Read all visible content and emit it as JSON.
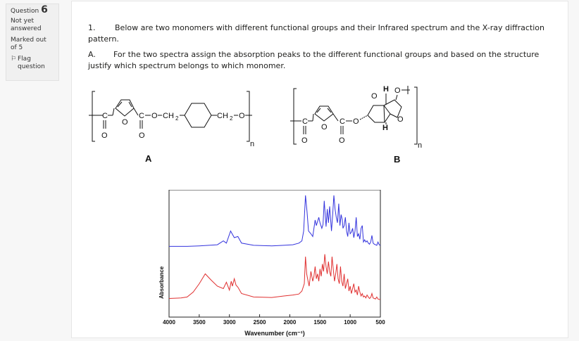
{
  "question": {
    "label": "Question",
    "number": "6",
    "state": "Not yet answered",
    "mark": "Marked out of 5",
    "flag": "Flag question"
  },
  "text": {
    "p1_num": "1.",
    "p1": "Below are two monomers  with different functional groups and their Infrared spectrum and the X-ray diffraction pattern.",
    "p2_num": "A.",
    "p2": "For the two spectra assign the absorption peaks to the different functional groups and based on the structure justify which spectrum belongs to which monomer."
  },
  "structures": {
    "A": {
      "label": "A",
      "left_fragment": "C",
      "carbonyl_c": "C",
      "o": "O",
      "ch2_left": "CH",
      "sub2": "2",
      "ch2_right": "CH",
      "o_end": "O",
      "n": "n"
    },
    "B": {
      "label": "B",
      "c": "C",
      "o": "O",
      "h": "H",
      "n": "n"
    }
  },
  "chart_data": {
    "type": "line",
    "xlabel": "Wavenumber (cm⁻¹)",
    "ylabel": "Absorbance",
    "xlim": [
      4000,
      500
    ],
    "x_reversed": true,
    "xticks": [
      4000,
      3500,
      3000,
      2500,
      2000,
      1500,
      1000,
      500
    ],
    "grid": false,
    "series": [
      {
        "color": "#3333dd",
        "x": [
          4000,
          3700,
          3500,
          3200,
          3100,
          3050,
          2980,
          2920,
          2860,
          2800,
          2600,
          2300,
          2100,
          1950,
          1850,
          1800,
          1770,
          1740,
          1715,
          1690,
          1650,
          1620,
          1580,
          1560,
          1520,
          1500,
          1470,
          1450,
          1430,
          1400,
          1380,
          1360,
          1340,
          1310,
          1290,
          1270,
          1250,
          1230,
          1210,
          1190,
          1170,
          1150,
          1130,
          1120,
          1100,
          1080,
          1060,
          1040,
          1020,
          1000,
          980,
          960,
          940,
          920,
          900,
          880,
          860,
          840,
          820,
          800,
          780,
          760,
          740,
          720,
          700,
          680,
          660,
          640,
          620,
          600,
          580,
          560,
          540,
          520,
          500
        ],
        "y": [
          0.02,
          0.02,
          0.03,
          0.05,
          0.12,
          0.08,
          0.3,
          0.18,
          0.2,
          0.08,
          0.04,
          0.03,
          0.04,
          0.05,
          0.08,
          0.12,
          0.3,
          0.95,
          0.65,
          0.3,
          0.25,
          0.2,
          0.5,
          0.4,
          0.55,
          0.45,
          0.35,
          0.42,
          0.85,
          0.38,
          0.7,
          0.45,
          0.75,
          0.3,
          0.6,
          0.95,
          0.7,
          0.55,
          0.45,
          0.8,
          0.4,
          0.6,
          0.5,
          0.35,
          0.4,
          0.55,
          0.3,
          0.2,
          0.45,
          0.25,
          0.28,
          0.35,
          0.18,
          0.3,
          0.55,
          0.2,
          0.25,
          0.15,
          0.35,
          0.4,
          0.1,
          0.14,
          0.1,
          0.12,
          0.08,
          0.06,
          0.1,
          0.22,
          0.08,
          0.06,
          0.05,
          0.04,
          0.1,
          0.05,
          0.04
        ]
      },
      {
        "color": "#e03030",
        "x": [
          4000,
          3800,
          3700,
          3600,
          3500,
          3400,
          3300,
          3200,
          3100,
          3050,
          3000,
          2970,
          2950,
          2920,
          2890,
          2860,
          2800,
          2600,
          2300,
          2100,
          1950,
          1850,
          1800,
          1760,
          1740,
          1720,
          1700,
          1680,
          1650,
          1620,
          1600,
          1580,
          1560,
          1540,
          1520,
          1500,
          1480,
          1460,
          1440,
          1420,
          1400,
          1380,
          1360,
          1340,
          1320,
          1300,
          1280,
          1260,
          1240,
          1220,
          1200,
          1180,
          1160,
          1140,
          1120,
          1100,
          1080,
          1060,
          1040,
          1020,
          1000,
          980,
          960,
          940,
          920,
          900,
          880,
          860,
          840,
          820,
          800,
          780,
          760,
          740,
          720,
          700,
          680,
          660,
          640,
          620,
          600,
          580,
          560,
          540,
          520,
          500
        ],
        "y": [
          0.05,
          0.06,
          0.08,
          0.18,
          0.35,
          0.55,
          0.42,
          0.3,
          0.25,
          0.38,
          0.22,
          0.4,
          0.3,
          0.45,
          0.32,
          0.28,
          0.15,
          0.08,
          0.07,
          0.1,
          0.12,
          0.14,
          0.2,
          0.35,
          0.9,
          0.55,
          0.42,
          0.3,
          0.6,
          0.4,
          0.5,
          0.7,
          0.45,
          0.55,
          0.4,
          0.65,
          0.5,
          0.75,
          0.6,
          0.95,
          0.7,
          0.55,
          0.8,
          0.6,
          0.5,
          0.9,
          0.65,
          0.4,
          0.55,
          0.75,
          0.45,
          0.35,
          0.7,
          0.4,
          0.3,
          0.55,
          0.25,
          0.35,
          0.45,
          0.2,
          0.3,
          0.15,
          0.25,
          0.35,
          0.18,
          0.22,
          0.12,
          0.3,
          0.18,
          0.1,
          0.15,
          0.08,
          0.1,
          0.06,
          0.12,
          0.08,
          0.05,
          0.07,
          0.15,
          0.06,
          0.05,
          0.04,
          0.08,
          0.04,
          0.03,
          0.03
        ]
      }
    ]
  }
}
